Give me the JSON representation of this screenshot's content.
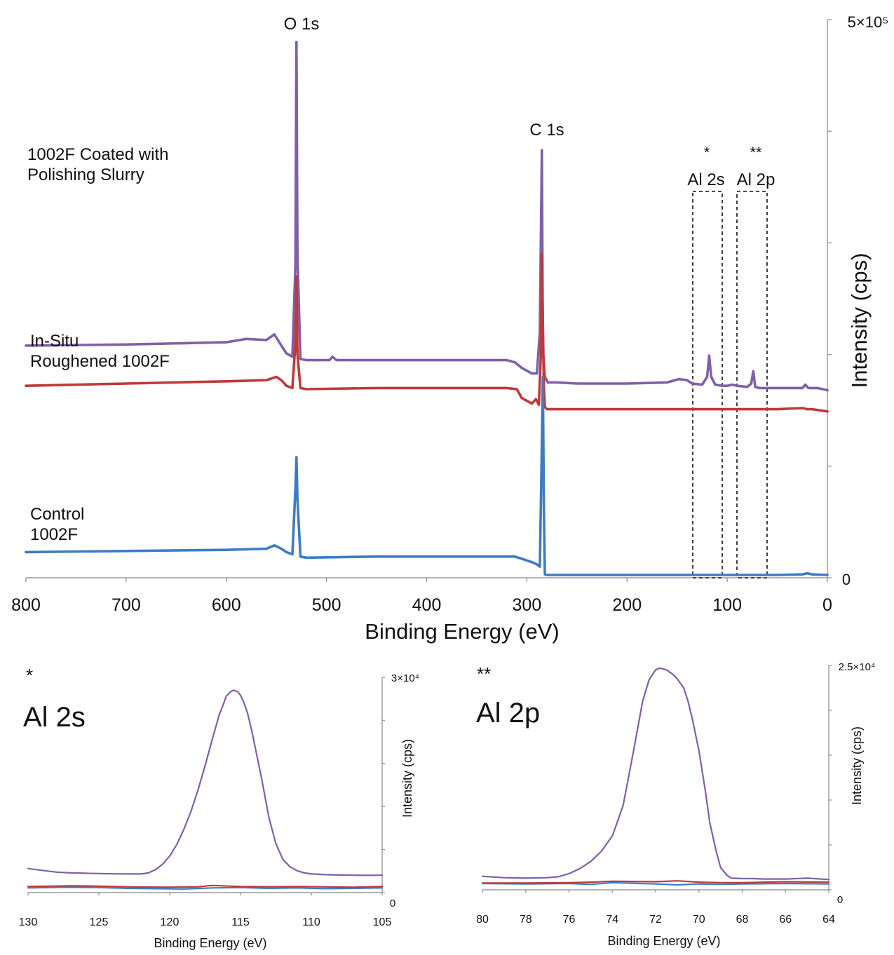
{
  "colors": {
    "purple": "#8060a8",
    "red": "#c0393b",
    "blue": "#3d7cc5",
    "axis": "#9a9a9a"
  },
  "chart_data": [
    {
      "type": "line",
      "panel": "survey",
      "xlabel": "Binding Energy (eV)",
      "ylabel": "Intensity (cps)",
      "xlim": [
        800,
        0
      ],
      "ylim": [
        0,
        500000
      ],
      "x_ticks": [
        "800",
        "700",
        "600",
        "500",
        "400",
        "300",
        "200",
        "100",
        "0"
      ],
      "y_tick_labels": {
        "top": "5×10⁵",
        "bottom": "0"
      },
      "peak_labels": [
        {
          "text": "O 1s",
          "x": 530
        },
        {
          "text": "C 1s",
          "x": 285
        },
        {
          "text": "*",
          "x": 118
        },
        {
          "text": "Al 2s",
          "x": 118
        },
        {
          "text": "**",
          "x": 74
        },
        {
          "text": "Al 2p",
          "x": 74
        }
      ],
      "boxed_regions": [
        {
          "x_range": [
            135,
            105
          ]
        },
        {
          "x_range": [
            90,
            59
          ]
        }
      ],
      "series": [
        {
          "name": "1002F Coated with Polishing Slurry",
          "color": "#8060a8",
          "x": [
            800,
            700,
            600,
            580,
            560,
            552,
            545,
            540,
            534,
            531,
            530,
            529,
            526,
            520,
            497,
            494,
            490,
            450,
            400,
            350,
            320,
            312,
            305,
            295,
            290,
            287,
            285,
            284,
            282,
            279,
            270,
            250,
            200,
            160,
            148,
            140,
            135,
            125,
            120,
            118,
            116,
            112,
            105,
            100,
            95,
            90,
            80,
            76,
            74,
            72,
            68,
            60,
            40,
            25,
            22,
            19,
            10,
            0
          ],
          "y": [
            208000,
            209000,
            211000,
            214000,
            213000,
            218000,
            208000,
            201000,
            198000,
            280000,
            480000,
            290000,
            196000,
            195000,
            195000,
            198000,
            195000,
            195000,
            195000,
            195000,
            195000,
            193000,
            188000,
            183000,
            183000,
            220000,
            383000,
            205000,
            180000,
            175000,
            175000,
            174000,
            174000,
            175000,
            178000,
            177000,
            174000,
            173000,
            180000,
            199000,
            180000,
            173000,
            172000,
            172000,
            173000,
            172000,
            171000,
            174000,
            185000,
            171000,
            170000,
            170000,
            170000,
            170000,
            173000,
            170000,
            170000,
            168000
          ]
        },
        {
          "name": "In-Situ Roughened 1002F",
          "color": "#c0393b",
          "x": [
            800,
            700,
            600,
            560,
            550,
            545,
            540,
            534,
            531,
            530,
            529,
            526,
            520,
            450,
            400,
            350,
            320,
            310,
            305,
            295,
            291,
            288,
            286,
            285,
            284,
            283,
            282,
            280,
            270,
            250,
            200,
            150,
            100,
            50,
            25,
            20,
            15,
            0
          ],
          "y": [
            172000,
            174000,
            176000,
            177000,
            180000,
            177000,
            172000,
            170000,
            210000,
            270000,
            200000,
            170000,
            169000,
            170000,
            170000,
            170000,
            170000,
            169000,
            161000,
            156000,
            160000,
            155000,
            200000,
            290000,
            230000,
            170000,
            153000,
            151000,
            151000,
            151000,
            151000,
            151000,
            151000,
            151000,
            152000,
            151000,
            151000,
            149000
          ]
        },
        {
          "name": "Control 1002F",
          "color": "#3d7cc5",
          "x": [
            800,
            700,
            600,
            560,
            552,
            545,
            540,
            534,
            531,
            530,
            529,
            526,
            520,
            450,
            400,
            350,
            320,
            312,
            305,
            295,
            290,
            287,
            285,
            284,
            283,
            282,
            280,
            270,
            250,
            200,
            150,
            100,
            50,
            25,
            20,
            15,
            0
          ],
          "y": [
            23000,
            24000,
            25000,
            26000,
            29000,
            26000,
            23000,
            21000,
            80000,
            108000,
            70000,
            19000,
            18000,
            19000,
            19000,
            19000,
            19000,
            19000,
            17000,
            14000,
            12000,
            10000,
            120000,
            180000,
            60000,
            3000,
            2500,
            2500,
            2500,
            2500,
            2500,
            2500,
            2500,
            3000,
            4000,
            3000,
            2500
          ]
        }
      ]
    },
    {
      "type": "line",
      "panel": "al-2s",
      "marker": "*",
      "panel_title": "Al 2s",
      "xlabel": "Binding Energy (eV)",
      "ylabel": "Intensity (cps)",
      "xlim": [
        130,
        105
      ],
      "ylim": [
        0,
        30000
      ],
      "x_ticks": [
        "130",
        "125",
        "120",
        "115",
        "110",
        "105"
      ],
      "y_tick_labels": {
        "top": "3×10⁴",
        "bottom": "0"
      },
      "series": [
        {
          "color": "#8060a8",
          "x": [
            130,
            129,
            128,
            127,
            126,
            125,
            124,
            123,
            122,
            121.5,
            121,
            120.5,
            120,
            119.5,
            119,
            118.5,
            118,
            117.5,
            117,
            116.5,
            116.2,
            116,
            115.7,
            115.5,
            115.2,
            115,
            114.8,
            114.5,
            114.2,
            114,
            113.5,
            113,
            112.5,
            112,
            111.5,
            111,
            110.5,
            110,
            109,
            108,
            107,
            106,
            105
          ],
          "y": [
            3350,
            3100,
            2850,
            2750,
            2700,
            2650,
            2620,
            2600,
            2600,
            2750,
            3200,
            3950,
            5100,
            6700,
            8800,
            11300,
            14300,
            17700,
            21300,
            24800,
            26300,
            27400,
            28000,
            28200,
            28000,
            27500,
            26700,
            25000,
            22500,
            20600,
            15800,
            10500,
            6800,
            4600,
            3600,
            3050,
            2750,
            2600,
            2500,
            2450,
            2420,
            2400,
            2420
          ]
        },
        {
          "color": "#c0393b",
          "x": [
            130,
            127,
            125,
            123,
            120,
            118,
            117,
            115,
            113,
            111,
            109,
            107,
            105
          ],
          "y": [
            850,
            950,
            900,
            800,
            750,
            800,
            1000,
            850,
            800,
            850,
            800,
            750,
            850
          ]
        },
        {
          "color": "#3d7cc5",
          "x": [
            130,
            127,
            125,
            123,
            121,
            119,
            117,
            115,
            113,
            111,
            109,
            107,
            105
          ],
          "y": [
            650,
            750,
            700,
            600,
            550,
            500,
            650,
            700,
            600,
            650,
            550,
            600,
            650
          ]
        }
      ]
    },
    {
      "type": "line",
      "panel": "al-2p",
      "marker": "**",
      "panel_title": "Al 2p",
      "xlabel": "Binding Energy (eV)",
      "ylabel": "Intensity (cps)",
      "xlim": [
        80,
        64
      ],
      "ylim": [
        0,
        25000
      ],
      "x_ticks": [
        "80",
        "78",
        "76",
        "74",
        "72",
        "70",
        "68",
        "66",
        "64"
      ],
      "y_tick_labels": {
        "top": "2.5×10⁴",
        "bottom": "0"
      },
      "series": [
        {
          "color": "#8060a8",
          "x": [
            80,
            79,
            78,
            77,
            76.5,
            76,
            75.5,
            75,
            74.5,
            74,
            73.5,
            73,
            72.6,
            72.3,
            72,
            71.8,
            71.5,
            71.2,
            71,
            70.7,
            70.5,
            70.3,
            70,
            69.7,
            69.5,
            69.2,
            69,
            68.7,
            68.5,
            68,
            67.5,
            67,
            66,
            65,
            64
          ],
          "y": [
            1500,
            1350,
            1300,
            1350,
            1450,
            1800,
            2350,
            3150,
            4300,
            6000,
            9400,
            15700,
            21000,
            23400,
            24500,
            24700,
            24500,
            24000,
            23500,
            22500,
            21000,
            19000,
            15500,
            11000,
            7500,
            4300,
            2500,
            1600,
            1300,
            1250,
            1250,
            1200,
            1200,
            1300,
            1150
          ]
        },
        {
          "color": "#c0393b",
          "x": [
            80,
            78,
            76,
            75,
            74,
            72,
            71,
            70,
            69,
            68,
            66,
            64
          ],
          "y": [
            750,
            750,
            800,
            850,
            950,
            900,
            1000,
            850,
            800,
            800,
            900,
            850
          ]
        },
        {
          "color": "#3d7cc5",
          "x": [
            80,
            78,
            76,
            75,
            74,
            72,
            71,
            70,
            69,
            68,
            66,
            64
          ],
          "y": [
            700,
            650,
            700,
            600,
            800,
            650,
            550,
            650,
            600,
            650,
            700,
            650
          ]
        }
      ]
    }
  ]
}
